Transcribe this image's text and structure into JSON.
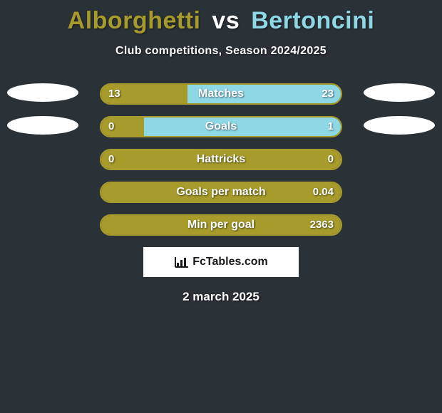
{
  "title": {
    "player1": "Alborghetti",
    "vs": "vs",
    "player2": "Bertoncini",
    "player1_color": "#a69b2b",
    "vs_color": "#ffffff",
    "player2_color": "#8ed8e6"
  },
  "subtitle": "Club competitions, Season 2024/2025",
  "colors": {
    "left_fill": "#a69b2b",
    "right_fill": "#8ed8e6",
    "border_left": "#a69b2b",
    "border_right": "#8ed8e6",
    "background": "#2a3137",
    "text": "#ffffff"
  },
  "club_badges": {
    "left_row0_width": 100,
    "right_row0_width": 100,
    "left_row1_width": 100,
    "right_row1_width": 100
  },
  "rows": [
    {
      "label": "Matches",
      "left_val": "13",
      "right_val": "23",
      "left_pct": 36.1,
      "right_pct": 63.9,
      "show_left_badge": true,
      "show_right_badge": true
    },
    {
      "label": "Goals",
      "left_val": "0",
      "right_val": "1",
      "left_pct": 18.0,
      "right_pct": 82.0,
      "show_left_badge": true,
      "show_right_badge": true
    },
    {
      "label": "Hattricks",
      "left_val": "0",
      "right_val": "0",
      "left_pct": 100,
      "right_pct": 0,
      "show_left_badge": false,
      "show_right_badge": false
    },
    {
      "label": "Goals per match",
      "left_val": "",
      "right_val": "0.04",
      "left_pct": 100,
      "right_pct": 0,
      "show_left_badge": false,
      "show_right_badge": false
    },
    {
      "label": "Min per goal",
      "left_val": "",
      "right_val": "2363",
      "left_pct": 100,
      "right_pct": 0,
      "show_left_badge": false,
      "show_right_badge": false
    }
  ],
  "footer_brand": "FcTables.com",
  "date": "2 march 2025"
}
